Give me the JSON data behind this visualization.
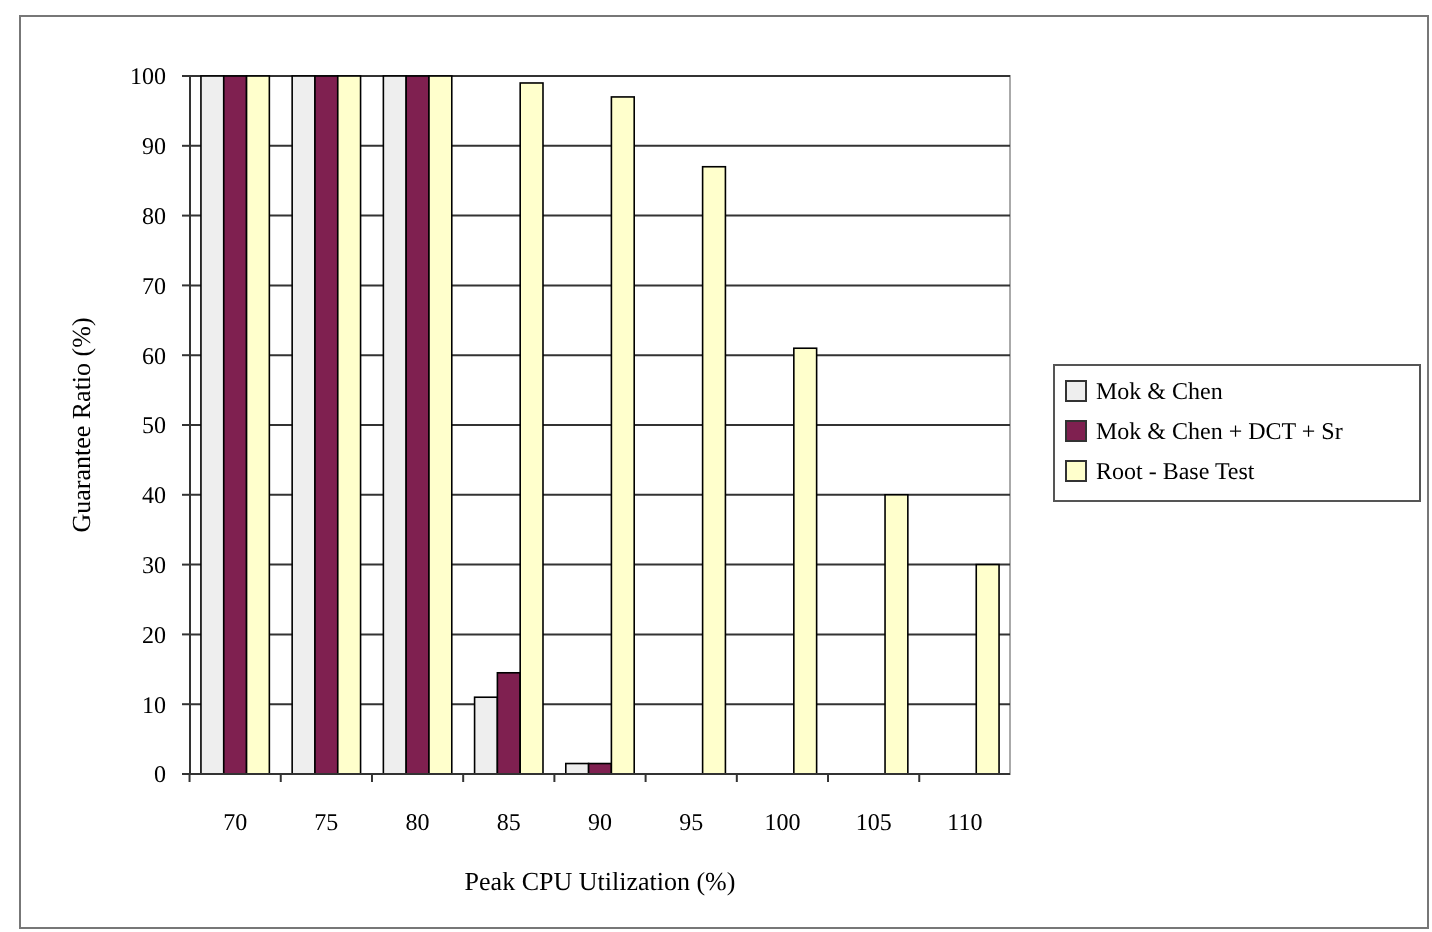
{
  "chart_data": {
    "type": "bar",
    "xlabel": "Peak CPU Utilization (%)",
    "ylabel": "Guarantee Ratio (%)",
    "categories": [
      "70",
      "75",
      "80",
      "85",
      "90",
      "95",
      "100",
      "105",
      "110"
    ],
    "series": [
      {
        "name": "Mok & Chen",
        "color": "#eeeeee",
        "values": [
          100,
          100,
          100,
          11,
          1.5,
          0,
          0,
          0,
          0
        ]
      },
      {
        "name": "Mok & Chen + DCT + Sr",
        "color": "#7f2050",
        "values": [
          100,
          100,
          100,
          14.5,
          1.5,
          0,
          0,
          0,
          0
        ]
      },
      {
        "name": "Root - Base Test",
        "color": "#ffffcc",
        "values": [
          100,
          100,
          100,
          99,
          97,
          87,
          61,
          40,
          30
        ]
      }
    ],
    "ylim": [
      0,
      100
    ],
    "yticks": [
      0,
      10,
      20,
      30,
      40,
      50,
      60,
      70,
      80,
      90,
      100
    ],
    "grid": "y",
    "legend": "right"
  }
}
